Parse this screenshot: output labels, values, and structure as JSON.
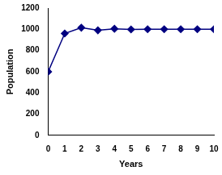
{
  "chart_data": {
    "type": "line",
    "x": [
      0,
      1,
      2,
      3,
      4,
      5,
      6,
      7,
      8,
      9,
      10
    ],
    "values": [
      600,
      960,
      1015,
      990,
      1005,
      998,
      1000,
      1000,
      1000,
      1000,
      1000
    ],
    "color": "#000080",
    "marker": "diamond",
    "x_label": "Years",
    "y_label": "Population",
    "xlim": [
      0,
      10
    ],
    "xticks": [
      0,
      1,
      2,
      3,
      4,
      5,
      6,
      7,
      8,
      9,
      10
    ],
    "ylim": [
      0,
      1200
    ],
    "yticks": [
      0,
      200,
      400,
      600,
      800,
      1000,
      1200
    ],
    "grid": false
  }
}
